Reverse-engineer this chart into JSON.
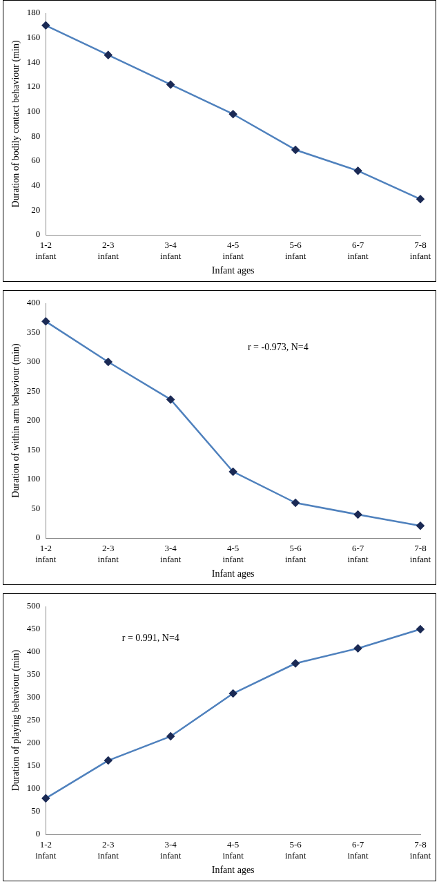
{
  "chart_data": [
    {
      "type": "line",
      "xlabel": "Infant ages",
      "ylabel": "Duration of bodily contact behaviour (min)",
      "categories": [
        "1-2 infant",
        "2-3 infant",
        "3-4 infant",
        "4-5 infant",
        "5-6 infant",
        "6-7 infant",
        "7-8 infant"
      ],
      "series": [
        {
          "color": "#4f81bd",
          "values": [
            170,
            146,
            122,
            98,
            69,
            52,
            29
          ]
        }
      ],
      "ylim": [
        0,
        180
      ],
      "yticks": [
        0,
        20,
        40,
        60,
        80,
        100,
        120,
        140,
        160,
        180
      ],
      "grid": false,
      "legend": false,
      "marker": "diamond",
      "line_style": "solid"
    },
    {
      "type": "line",
      "xlabel": "Infant ages",
      "ylabel": "Duration of within arm behaviour (min)",
      "categories": [
        "1-2 infant",
        "2-3 infant",
        "3-4 infant",
        "4-5 infant",
        "5-6 infant",
        "6-7 infant",
        "7-8 infant"
      ],
      "series": [
        {
          "color": "#4f81bd",
          "values": [
            369,
            300,
            236,
            113,
            60,
            40,
            21
          ]
        }
      ],
      "ylim": [
        0,
        400
      ],
      "yticks": [
        0,
        50,
        100,
        150,
        200,
        250,
        300,
        350,
        400
      ],
      "grid": false,
      "legend": false,
      "marker": "diamond",
      "line_style": "solid",
      "annotations": [
        "r = -0.973, N=4"
      ]
    },
    {
      "type": "line",
      "xlabel": "Infant ages",
      "ylabel": "Duration of playing behaviour (min)",
      "categories": [
        "1-2 infant",
        "2-3 infant",
        "3-4 infant",
        "4-5 infant",
        "5-6 infant",
        "6-7 infant",
        "7-8 infant"
      ],
      "series": [
        {
          "color": "#4f81bd",
          "values": [
            79,
            162,
            215,
            309,
            375,
            408,
            450
          ]
        }
      ],
      "ylim": [
        0,
        500
      ],
      "yticks": [
        0,
        50,
        100,
        150,
        200,
        250,
        300,
        350,
        400,
        450,
        500
      ],
      "grid": false,
      "legend": false,
      "marker": "diamond",
      "line_style": "solid",
      "annotations": [
        "r = 0.991, N=4"
      ]
    }
  ]
}
